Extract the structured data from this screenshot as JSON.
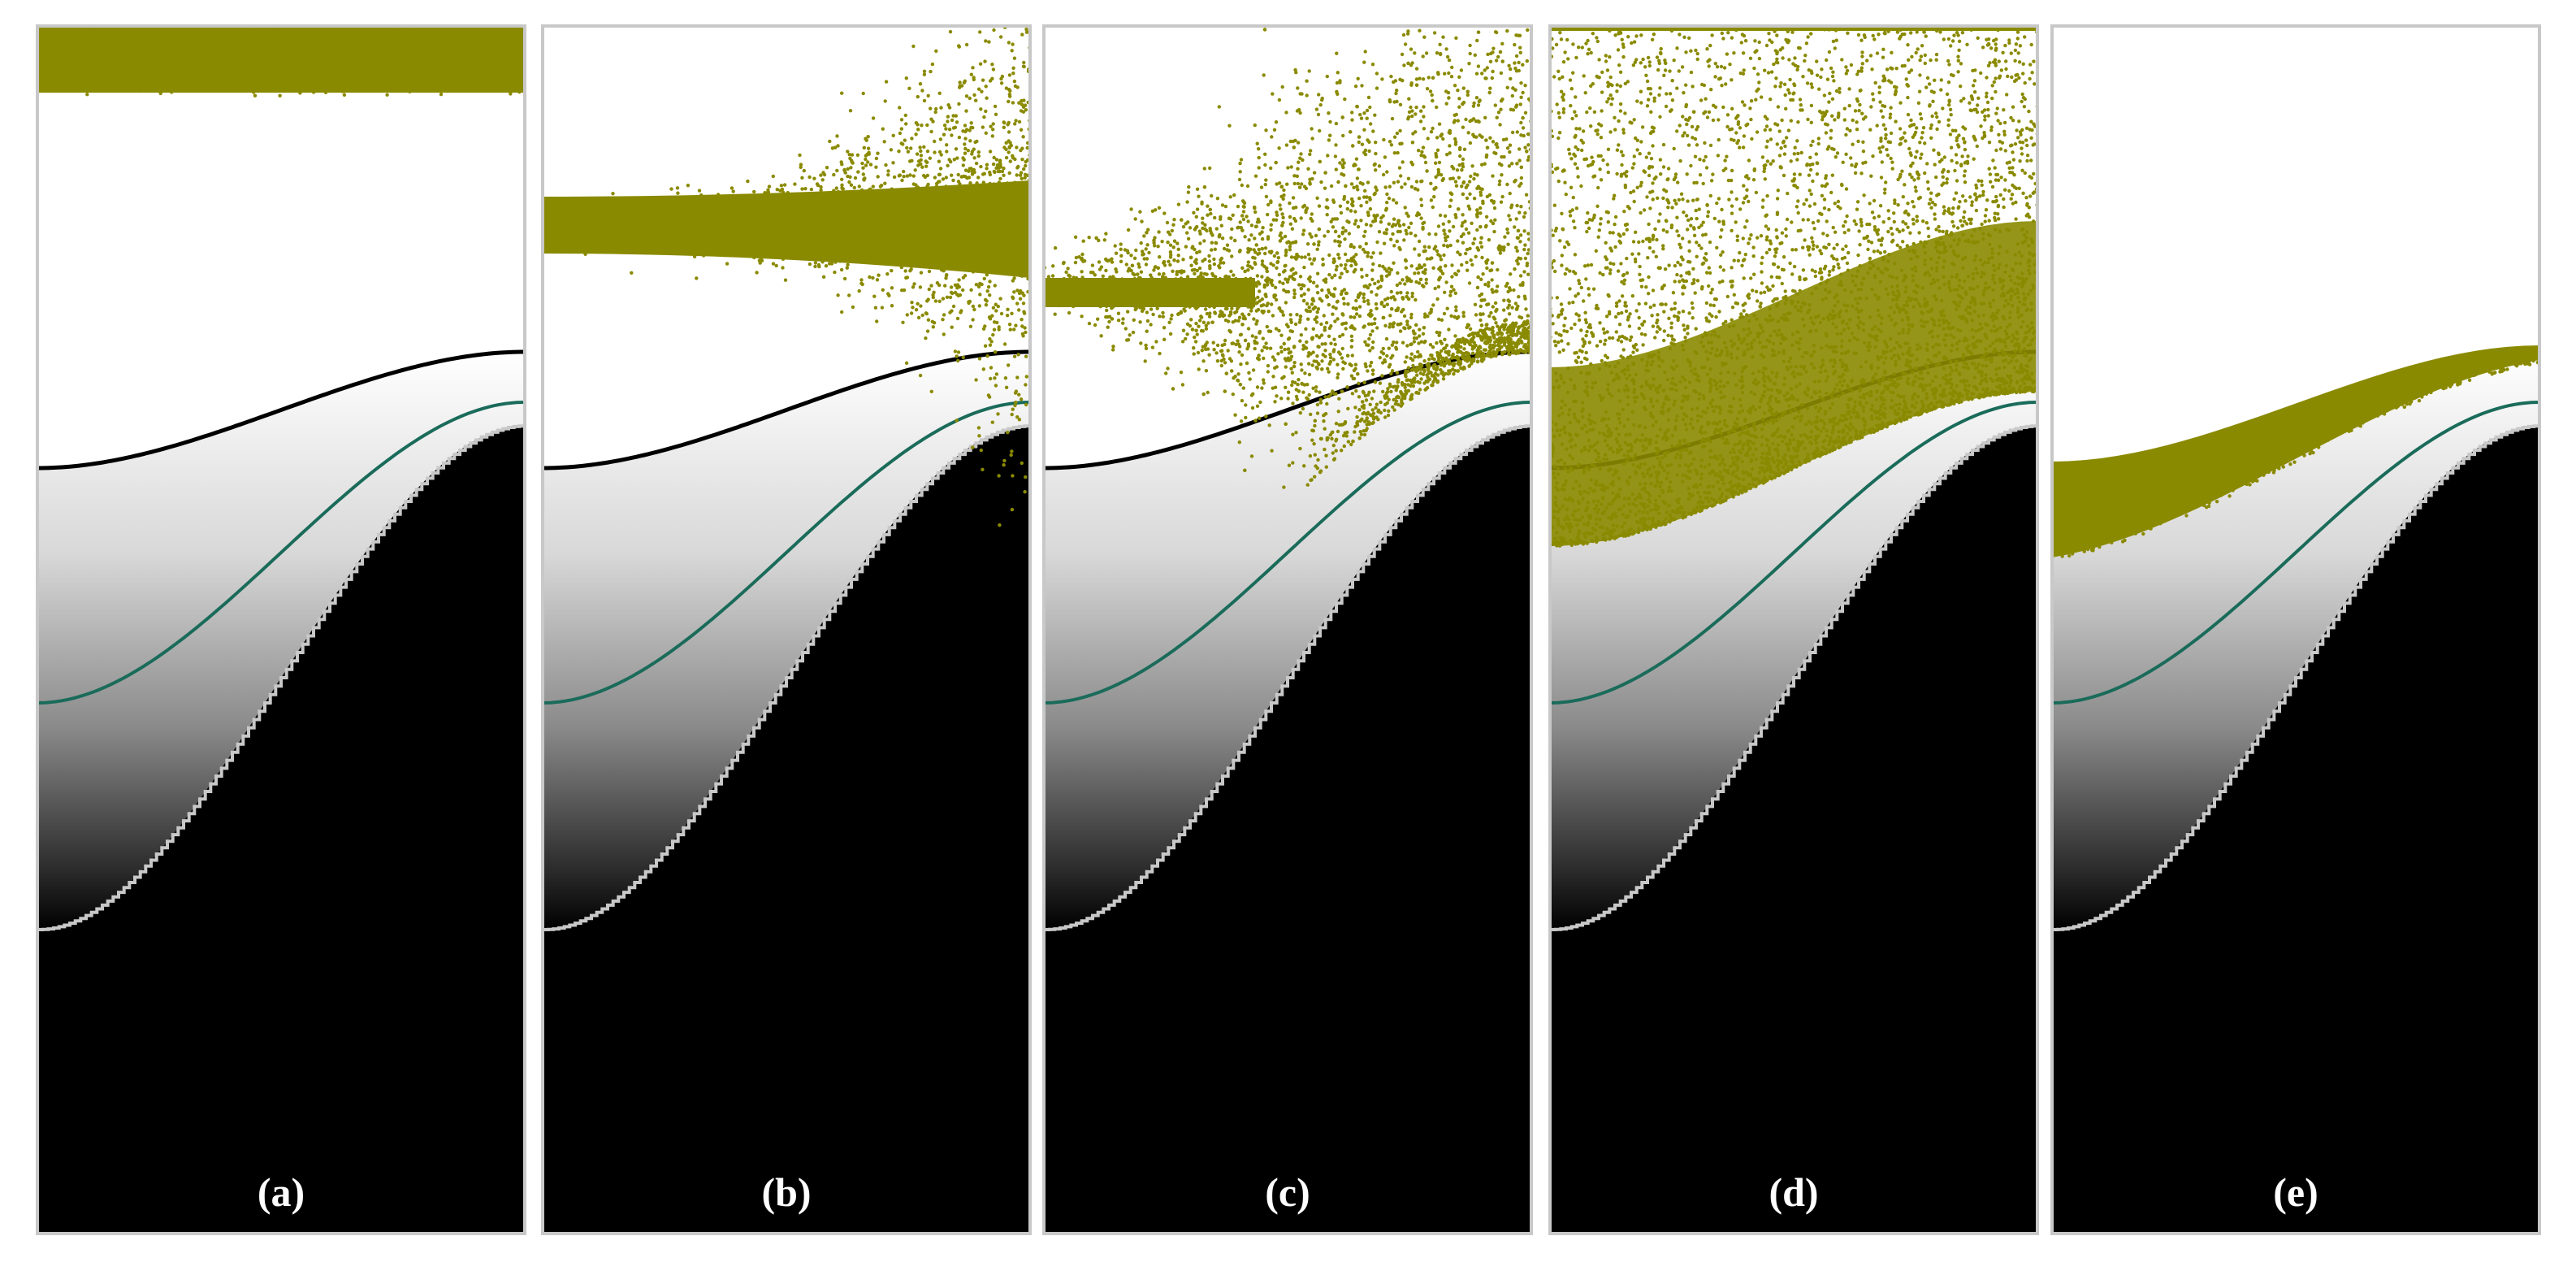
{
  "figure": {
    "panels": [
      {
        "id": "a",
        "label": "(a)",
        "particles": "upper-band"
      },
      {
        "id": "b",
        "label": "(b)",
        "particles": "band-spreading"
      },
      {
        "id": "c",
        "label": "(c)",
        "particles": "band-dispersing"
      },
      {
        "id": "d",
        "label": "(d)",
        "particles": "cloud"
      },
      {
        "id": "e",
        "label": "(e)",
        "particles": "on-boundary"
      }
    ],
    "colors": {
      "particle": "#8a8a00",
      "boundary_upper": "#000000",
      "boundary_mid": "#1a6b5a",
      "boundary_lower": "#c8c8c8",
      "panel_border": "#c8c8c8",
      "label_text": "#ffffff"
    }
  }
}
